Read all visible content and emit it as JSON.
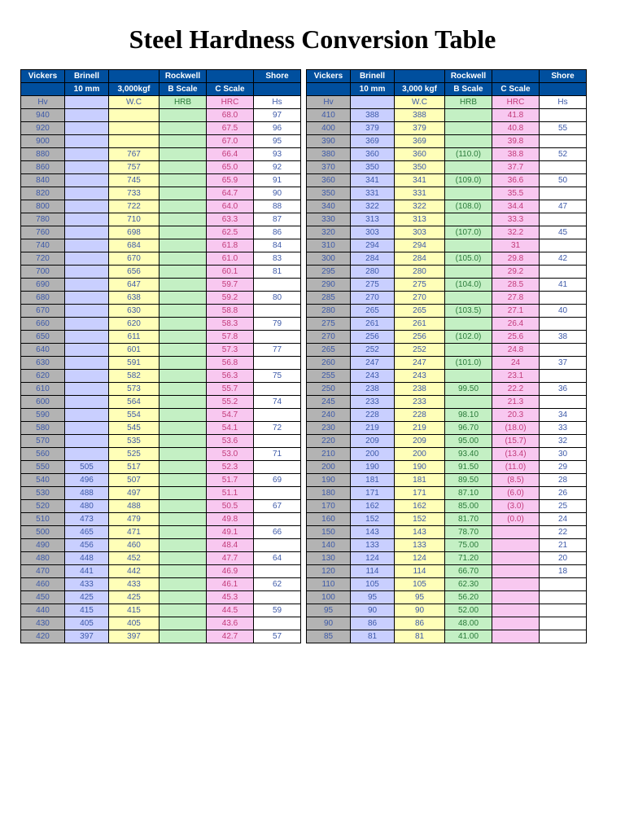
{
  "title": "Steel Hardness Conversion Table",
  "headers": {
    "row1": [
      "Vickers",
      "Brinell",
      "",
      "Rockwell",
      "",
      "Shore"
    ],
    "row2": [
      "",
      "10 mm",
      "3,000kgf",
      "B Scale",
      "C Scale",
      ""
    ],
    "row2_right": [
      "",
      "10 mm",
      "3,000 kgf",
      "B Scale",
      "C Scale",
      ""
    ],
    "row3": [
      "Hv",
      "",
      "W.C",
      "HRB",
      "HRC",
      "Hs"
    ]
  },
  "columns": [
    {
      "key": "hv",
      "cls": "c-gray"
    },
    {
      "key": "b10",
      "cls": "c-lilac"
    },
    {
      "key": "b3k",
      "cls": "c-yellow"
    },
    {
      "key": "hrb",
      "cls": "c-green"
    },
    {
      "key": "hrc",
      "cls": "c-pink"
    },
    {
      "key": "hs",
      "cls": "c-white"
    }
  ],
  "col_widths": [
    "col-hv",
    "col-b10",
    "col-b3k",
    "col-hrb",
    "col-hrc",
    "col-hs"
  ],
  "left_rows": [
    {
      "hv": "940",
      "b10": "",
      "b3k": "",
      "hrb": "",
      "hrc": "68.0",
      "hs": "97"
    },
    {
      "hv": "920",
      "b10": "",
      "b3k": "",
      "hrb": "",
      "hrc": "67.5",
      "hs": "96"
    },
    {
      "hv": "900",
      "b10": "",
      "b3k": "",
      "hrb": "",
      "hrc": "67.0",
      "hs": "95"
    },
    {
      "hv": "880",
      "b10": "",
      "b3k": "767",
      "hrb": "",
      "hrc": "66.4",
      "hs": "93"
    },
    {
      "hv": "860",
      "b10": "",
      "b3k": "757",
      "hrb": "",
      "hrc": "65.0",
      "hs": "92"
    },
    {
      "hv": "840",
      "b10": "",
      "b3k": "745",
      "hrb": "",
      "hrc": "65.9",
      "hs": "91"
    },
    {
      "hv": "820",
      "b10": "",
      "b3k": "733",
      "hrb": "",
      "hrc": "64.7",
      "hs": "90"
    },
    {
      "hv": "800",
      "b10": "",
      "b3k": "722",
      "hrb": "",
      "hrc": "64.0",
      "hs": "88"
    },
    {
      "hv": "780",
      "b10": "",
      "b3k": "710",
      "hrb": "",
      "hrc": "63.3",
      "hs": "87"
    },
    {
      "hv": "760",
      "b10": "",
      "b3k": "698",
      "hrb": "",
      "hrc": "62.5",
      "hs": "86"
    },
    {
      "hv": "740",
      "b10": "",
      "b3k": "684",
      "hrb": "",
      "hrc": "61.8",
      "hs": "84"
    },
    {
      "hv": "720",
      "b10": "",
      "b3k": "670",
      "hrb": "",
      "hrc": "61.0",
      "hs": "83"
    },
    {
      "hv": "700",
      "b10": "",
      "b3k": "656",
      "hrb": "",
      "hrc": "60.1",
      "hs": "81"
    },
    {
      "hv": "690",
      "b10": "",
      "b3k": "647",
      "hrb": "",
      "hrc": "59.7",
      "hs": ""
    },
    {
      "hv": "680",
      "b10": "",
      "b3k": "638",
      "hrb": "",
      "hrc": "59.2",
      "hs": "80"
    },
    {
      "hv": "670",
      "b10": "",
      "b3k": "630",
      "hrb": "",
      "hrc": "58.8",
      "hs": ""
    },
    {
      "hv": "660",
      "b10": "",
      "b3k": "620",
      "hrb": "",
      "hrc": "58.3",
      "hs": "79"
    },
    {
      "hv": "650",
      "b10": "",
      "b3k": "611",
      "hrb": "",
      "hrc": "57.8",
      "hs": ""
    },
    {
      "hv": "640",
      "b10": "",
      "b3k": "601",
      "hrb": "",
      "hrc": "57.3",
      "hs": "77"
    },
    {
      "hv": "630",
      "b10": "",
      "b3k": "591",
      "hrb": "",
      "hrc": "56.8",
      "hs": ""
    },
    {
      "hv": "620",
      "b10": "",
      "b3k": "582",
      "hrb": "",
      "hrc": "56.3",
      "hs": "75"
    },
    {
      "hv": "610",
      "b10": "",
      "b3k": "573",
      "hrb": "",
      "hrc": "55.7",
      "hs": ""
    },
    {
      "hv": "600",
      "b10": "",
      "b3k": "564",
      "hrb": "",
      "hrc": "55.2",
      "hs": "74"
    },
    {
      "hv": "590",
      "b10": "",
      "b3k": "554",
      "hrb": "",
      "hrc": "54.7",
      "hs": ""
    },
    {
      "hv": "580",
      "b10": "",
      "b3k": "545",
      "hrb": "",
      "hrc": "54.1",
      "hs": "72"
    },
    {
      "hv": "570",
      "b10": "",
      "b3k": "535",
      "hrb": "",
      "hrc": "53.6",
      "hs": ""
    },
    {
      "hv": "560",
      "b10": "",
      "b3k": "525",
      "hrb": "",
      "hrc": "53.0",
      "hs": "71"
    },
    {
      "hv": "550",
      "b10": "505",
      "b3k": "517",
      "hrb": "",
      "hrc": "52.3",
      "hs": ""
    },
    {
      "hv": "540",
      "b10": "496",
      "b3k": "507",
      "hrb": "",
      "hrc": "51.7",
      "hs": "69"
    },
    {
      "hv": "530",
      "b10": "488",
      "b3k": "497",
      "hrb": "",
      "hrc": "51.1",
      "hs": ""
    },
    {
      "hv": "520",
      "b10": "480",
      "b3k": "488",
      "hrb": "",
      "hrc": "50.5",
      "hs": "67"
    },
    {
      "hv": "510",
      "b10": "473",
      "b3k": "479",
      "hrb": "",
      "hrc": "49.8",
      "hs": ""
    },
    {
      "hv": "500",
      "b10": "465",
      "b3k": "471",
      "hrb": "",
      "hrc": "49.1",
      "hs": "66"
    },
    {
      "hv": "490",
      "b10": "456",
      "b3k": "460",
      "hrb": "",
      "hrc": "48.4",
      "hs": ""
    },
    {
      "hv": "480",
      "b10": "448",
      "b3k": "452",
      "hrb": "",
      "hrc": "47.7",
      "hs": "64"
    },
    {
      "hv": "470",
      "b10": "441",
      "b3k": "442",
      "hrb": "",
      "hrc": "46.9",
      "hs": ""
    },
    {
      "hv": "460",
      "b10": "433",
      "b3k": "433",
      "hrb": "",
      "hrc": "46.1",
      "hs": "62"
    },
    {
      "hv": "450",
      "b10": "425",
      "b3k": "425",
      "hrb": "",
      "hrc": "45.3",
      "hs": ""
    },
    {
      "hv": "440",
      "b10": "415",
      "b3k": "415",
      "hrb": "",
      "hrc": "44.5",
      "hs": "59"
    },
    {
      "hv": "430",
      "b10": "405",
      "b3k": "405",
      "hrb": "",
      "hrc": "43.6",
      "hs": ""
    },
    {
      "hv": "420",
      "b10": "397",
      "b3k": "397",
      "hrb": "",
      "hrc": "42.7",
      "hs": "57"
    }
  ],
  "right_rows": [
    {
      "hv": "410",
      "b10": "388",
      "b3k": "388",
      "hrb": "",
      "hrc": "41.8",
      "hs": ""
    },
    {
      "hv": "400",
      "b10": "379",
      "b3k": "379",
      "hrb": "",
      "hrc": "40.8",
      "hs": "55"
    },
    {
      "hv": "390",
      "b10": "369",
      "b3k": "369",
      "hrb": "",
      "hrc": "39.8",
      "hs": ""
    },
    {
      "hv": "380",
      "b10": "360",
      "b3k": "360",
      "hrb": "(110.0)",
      "hrc": "38.8",
      "hs": "52"
    },
    {
      "hv": "370",
      "b10": "350",
      "b3k": "350",
      "hrb": "",
      "hrc": "37.7",
      "hs": ""
    },
    {
      "hv": "360",
      "b10": "341",
      "b3k": "341",
      "hrb": "(109.0)",
      "hrc": "36.6",
      "hs": "50"
    },
    {
      "hv": "350",
      "b10": "331",
      "b3k": "331",
      "hrb": "",
      "hrc": "35.5",
      "hs": ""
    },
    {
      "hv": "340",
      "b10": "322",
      "b3k": "322",
      "hrb": "(108.0)",
      "hrc": "34.4",
      "hs": "47"
    },
    {
      "hv": "330",
      "b10": "313",
      "b3k": "313",
      "hrb": "",
      "hrc": "33.3",
      "hs": ""
    },
    {
      "hv": "320",
      "b10": "303",
      "b3k": "303",
      "hrb": "(107.0)",
      "hrc": "32.2",
      "hs": "45"
    },
    {
      "hv": "310",
      "b10": "294",
      "b3k": "294",
      "hrb": "",
      "hrc": "31",
      "hs": ""
    },
    {
      "hv": "300",
      "b10": "284",
      "b3k": "284",
      "hrb": "(105.0)",
      "hrc": "29.8",
      "hs": "42"
    },
    {
      "hv": "295",
      "b10": "280",
      "b3k": "280",
      "hrb": "",
      "hrc": "29.2",
      "hs": ""
    },
    {
      "hv": "290",
      "b10": "275",
      "b3k": "275",
      "hrb": "(104.0)",
      "hrc": "28.5",
      "hs": "41"
    },
    {
      "hv": "285",
      "b10": "270",
      "b3k": "270",
      "hrb": "",
      "hrc": "27.8",
      "hs": ""
    },
    {
      "hv": "280",
      "b10": "265",
      "b3k": "265",
      "hrb": "(103.5)",
      "hrc": "27.1",
      "hs": "40"
    },
    {
      "hv": "275",
      "b10": "261",
      "b3k": "261",
      "hrb": "",
      "hrc": "26.4",
      "hs": ""
    },
    {
      "hv": "270",
      "b10": "256",
      "b3k": "256",
      "hrb": "(102.0)",
      "hrc": "25.6",
      "hs": "38"
    },
    {
      "hv": "265",
      "b10": "252",
      "b3k": "252",
      "hrb": "",
      "hrc": "24.8",
      "hs": ""
    },
    {
      "hv": "260",
      "b10": "247",
      "b3k": "247",
      "hrb": "(101.0)",
      "hrc": "24",
      "hs": "37"
    },
    {
      "hv": "255",
      "b10": "243",
      "b3k": "243",
      "hrb": "",
      "hrc": "23.1",
      "hs": ""
    },
    {
      "hv": "250",
      "b10": "238",
      "b3k": "238",
      "hrb": "99.50",
      "hrc": "22.2",
      "hs": "36"
    },
    {
      "hv": "245",
      "b10": "233",
      "b3k": "233",
      "hrb": "",
      "hrc": "21.3",
      "hs": ""
    },
    {
      "hv": "240",
      "b10": "228",
      "b3k": "228",
      "hrb": "98.10",
      "hrc": "20.3",
      "hs": "34"
    },
    {
      "hv": "230",
      "b10": "219",
      "b3k": "219",
      "hrb": "96.70",
      "hrc": "(18.0)",
      "hs": "33"
    },
    {
      "hv": "220",
      "b10": "209",
      "b3k": "209",
      "hrb": "95.00",
      "hrc": "(15.7)",
      "hs": "32"
    },
    {
      "hv": "210",
      "b10": "200",
      "b3k": "200",
      "hrb": "93.40",
      "hrc": "(13.4)",
      "hs": "30"
    },
    {
      "hv": "200",
      "b10": "190",
      "b3k": "190",
      "hrb": "91.50",
      "hrc": "(11.0)",
      "hs": "29"
    },
    {
      "hv": "190",
      "b10": "181",
      "b3k": "181",
      "hrb": "89.50",
      "hrc": "(8.5)",
      "hs": "28"
    },
    {
      "hv": "180",
      "b10": "171",
      "b3k": "171",
      "hrb": "87.10",
      "hrc": "(6.0)",
      "hs": "26"
    },
    {
      "hv": "170",
      "b10": "162",
      "b3k": "162",
      "hrb": "85.00",
      "hrc": "(3.0)",
      "hs": "25"
    },
    {
      "hv": "160",
      "b10": "152",
      "b3k": "152",
      "hrb": "81.70",
      "hrc": "(0.0)",
      "hs": "24"
    },
    {
      "hv": "150",
      "b10": "143",
      "b3k": "143",
      "hrb": "78.70",
      "hrc": "",
      "hs": "22"
    },
    {
      "hv": "140",
      "b10": "133",
      "b3k": "133",
      "hrb": "75.00",
      "hrc": "",
      "hs": "21"
    },
    {
      "hv": "130",
      "b10": "124",
      "b3k": "124",
      "hrb": "71.20",
      "hrc": "",
      "hs": "20"
    },
    {
      "hv": "120",
      "b10": "114",
      "b3k": "114",
      "hrb": "66.70",
      "hrc": "",
      "hs": "18"
    },
    {
      "hv": "110",
      "b10": "105",
      "b3k": "105",
      "hrb": "62.30",
      "hrc": "",
      "hs": ""
    },
    {
      "hv": "100",
      "b10": "95",
      "b3k": "95",
      "hrb": "56.20",
      "hrc": "",
      "hs": ""
    },
    {
      "hv": "95",
      "b10": "90",
      "b3k": "90",
      "hrb": "52.00",
      "hrc": "",
      "hs": ""
    },
    {
      "hv": "90",
      "b10": "86",
      "b3k": "86",
      "hrb": "48.00",
      "hrc": "",
      "hs": ""
    },
    {
      "hv": "85",
      "b10": "81",
      "b3k": "81",
      "hrb": "41.00",
      "hrc": "",
      "hs": ""
    }
  ],
  "label_row_classes": [
    "c-gray",
    "c-lilac",
    "c-yellow",
    "c-green",
    "c-pink",
    "c-white"
  ],
  "colors": {
    "header_bg": "#004f9e",
    "header_fg": "#ffffff",
    "gray": "#b3b3b3",
    "lilac": "#c9cfff",
    "yellow": "#ffffb8",
    "green": "#c4f0c4",
    "pink": "#f8c8f0",
    "white": "#ffffff",
    "blue_text": "#3e5aa8",
    "green_text": "#2a7a3a",
    "pink_text": "#c23b7a"
  }
}
